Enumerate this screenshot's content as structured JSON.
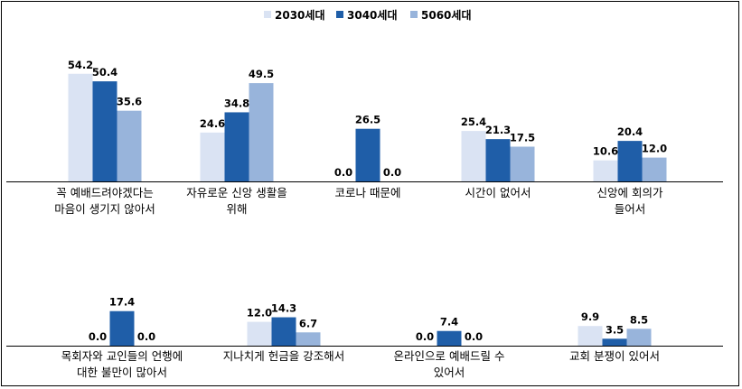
{
  "chart_data": {
    "type": "bar",
    "title": "",
    "xlabel": "",
    "ylabel": "",
    "ylim": [
      0,
      60
    ],
    "grid": false,
    "legend_position": "top-center",
    "series": [
      {
        "name": "2030세대",
        "color": "#dae3f3"
      },
      {
        "name": "3040세대",
        "color": "#1f5ea8"
      },
      {
        "name": "5060세대",
        "color": "#98b4db"
      }
    ],
    "panels": [
      {
        "categories": [
          {
            "label": [
              "꼭 예배드려야겠다는",
              "마음이 생기지 않아서"
            ],
            "values": [
              54.2,
              50.4,
              35.6
            ]
          },
          {
            "label": [
              "자유로운 신앙 생활을",
              "위해"
            ],
            "values": [
              24.6,
              34.8,
              49.5
            ]
          },
          {
            "label": [
              "코로나 때문에"
            ],
            "values": [
              0.0,
              26.5,
              0.0
            ]
          },
          {
            "label": [
              "시간이 없어서"
            ],
            "values": [
              25.4,
              21.3,
              17.5
            ]
          },
          {
            "label": [
              "신앙에 회의가",
              "들어서"
            ],
            "values": [
              10.6,
              20.4,
              12.0
            ]
          }
        ]
      },
      {
        "categories": [
          {
            "label": [
              "목회자와 교인들의 언행에",
              "대한 불만이 많아서"
            ],
            "values": [
              0.0,
              17.4,
              0.0
            ]
          },
          {
            "label": [
              "지나치게 헌금을 강조해서"
            ],
            "values": [
              12.0,
              14.3,
              6.7
            ]
          },
          {
            "label": [
              "온라인으로 예배드릴 수",
              "있어서"
            ],
            "values": [
              0.0,
              7.4,
              0.0
            ]
          },
          {
            "label": [
              "교회 분쟁이 있어서"
            ],
            "values": [
              9.9,
              3.5,
              8.5
            ]
          }
        ]
      }
    ]
  }
}
